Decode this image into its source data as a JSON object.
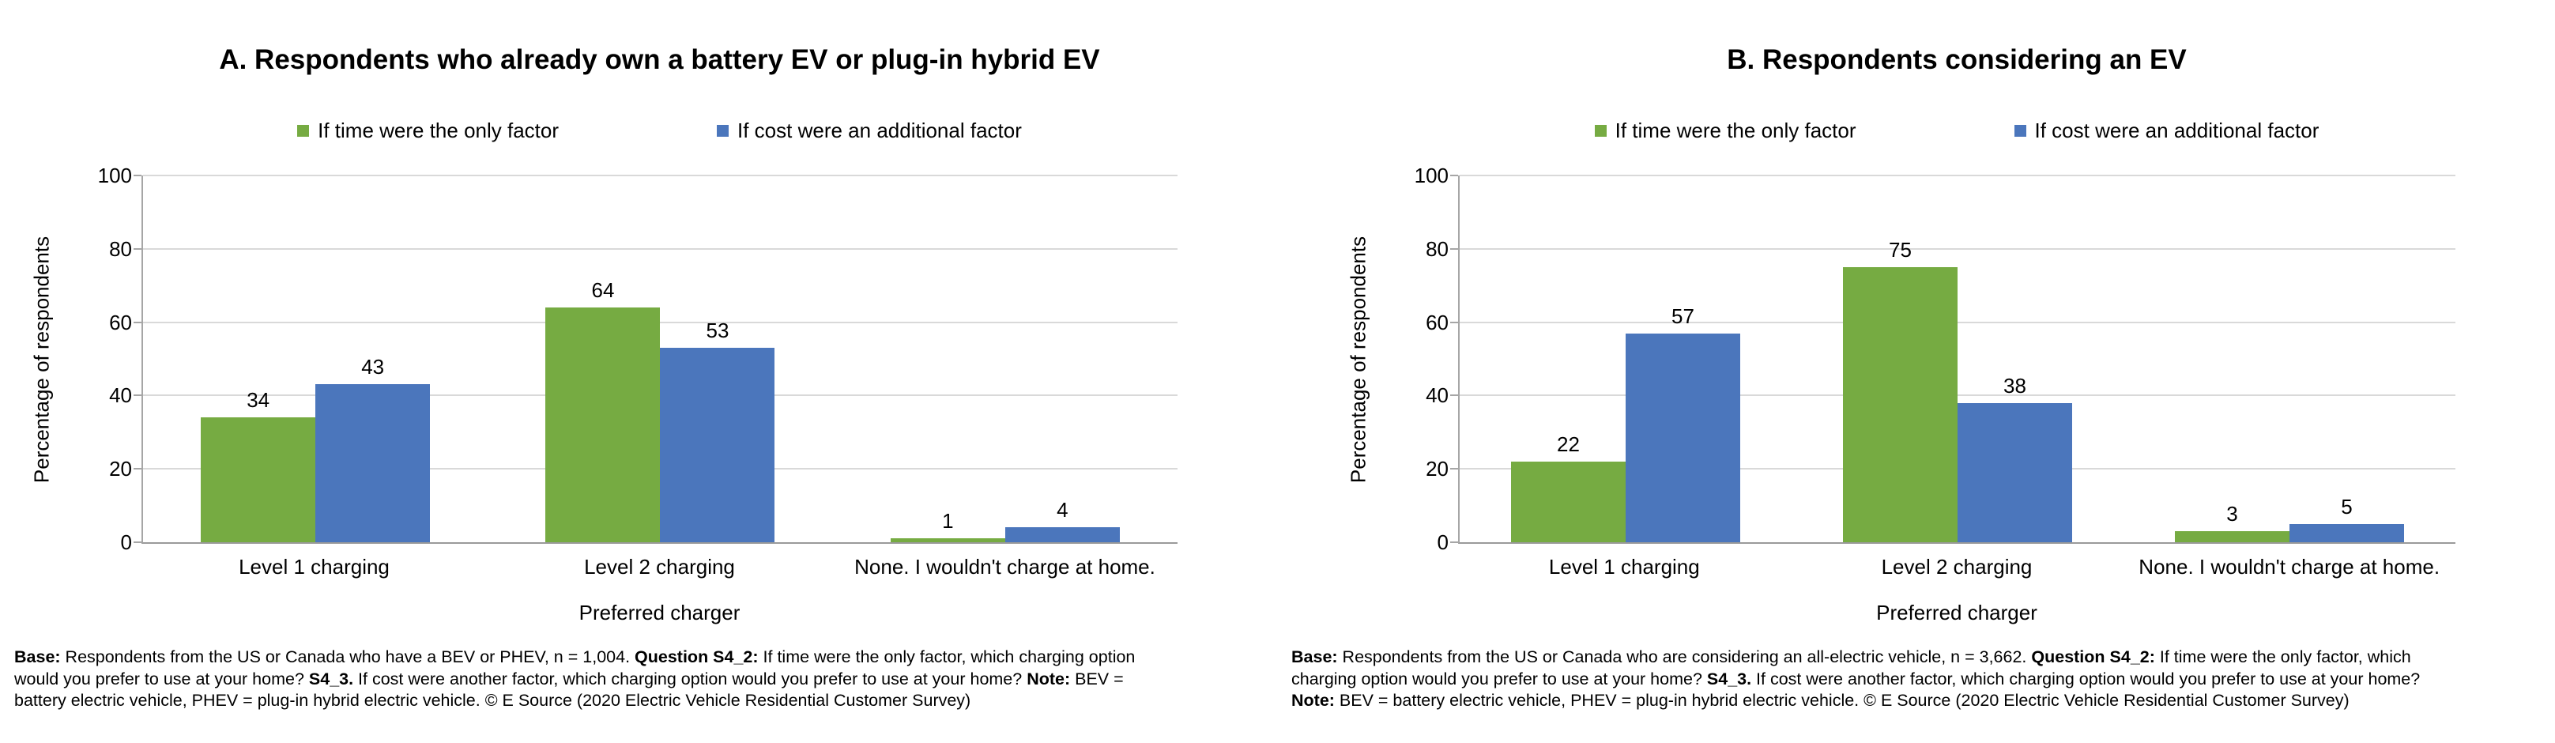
{
  "chart_data": [
    {
      "type": "bar",
      "panel_id": "A",
      "title": "A. Respondents who already own a battery EV or plug-in hybrid EV",
      "categories": [
        "Level 1 charging",
        "Level 2 charging",
        "None. I wouldn't charge at home."
      ],
      "series": [
        {
          "name": "If time were the only factor",
          "color": "#76ab42",
          "values": [
            34,
            64,
            1
          ]
        },
        {
          "name": "If cost were an additional factor",
          "color": "#4b76bc",
          "values": [
            43,
            53,
            4
          ]
        }
      ],
      "xlabel": "Preferred charger",
      "ylabel": "Percentage of respondents",
      "ylim": [
        0,
        100
      ],
      "yticks": [
        0,
        20,
        40,
        60,
        80,
        100
      ],
      "grid": true,
      "legend_position": "top",
      "data_labels": true,
      "footnote_segments": [
        {
          "text": "Base:",
          "bold": true
        },
        {
          "text": " Respondents from the US or Canada who have a BEV or PHEV, n = 1,004. ",
          "bold": false
        },
        {
          "text": "Question S4_2:",
          "bold": true
        },
        {
          "text": " If time were the only factor, which charging option would you prefer to use at your home? ",
          "bold": false
        },
        {
          "text": "S4_3.",
          "bold": true
        },
        {
          "text": " If cost were another factor, which charging option would you prefer to use at your home? ",
          "bold": false
        },
        {
          "text": "Note:",
          "bold": true
        },
        {
          "text": " BEV = battery electric vehicle, PHEV = plug-in hybrid electric vehicle. © E Source (2020 Electric Vehicle Residential Customer Survey)",
          "bold": false
        }
      ]
    },
    {
      "type": "bar",
      "panel_id": "B",
      "title": "B. Respondents considering an EV",
      "categories": [
        "Level 1 charging",
        "Level 2 charging",
        "None. I wouldn't charge at home."
      ],
      "series": [
        {
          "name": "If time were the only factor",
          "color": "#76ab42",
          "values": [
            22,
            75,
            3
          ]
        },
        {
          "name": "If cost were an additional factor",
          "color": "#4b76bc",
          "values": [
            57,
            38,
            5
          ]
        }
      ],
      "xlabel": "Preferred charger",
      "ylabel": "Percentage of respondents",
      "ylim": [
        0,
        100
      ],
      "yticks": [
        0,
        20,
        40,
        60,
        80,
        100
      ],
      "grid": true,
      "legend_position": "top",
      "data_labels": true,
      "footnote_segments": [
        {
          "text": "Base:",
          "bold": true
        },
        {
          "text": " Respondents from the US or Canada who are considering an all-electric vehicle, n = 3,662. ",
          "bold": false
        },
        {
          "text": "Question S4_2:",
          "bold": true
        },
        {
          "text": " If time were the only factor, which charging option would you prefer to use at your home? ",
          "bold": false
        },
        {
          "text": "S4_3.",
          "bold": true
        },
        {
          "text": " If cost were another factor, which charging option would you prefer to use at your home? ",
          "bold": false
        },
        {
          "text": "Note:",
          "bold": true
        },
        {
          "text": " BEV = battery electric vehicle, PHEV = plug-in hybrid electric vehicle. © E Source (2020 Electric Vehicle Residential Customer Survey)",
          "bold": false
        }
      ]
    }
  ]
}
